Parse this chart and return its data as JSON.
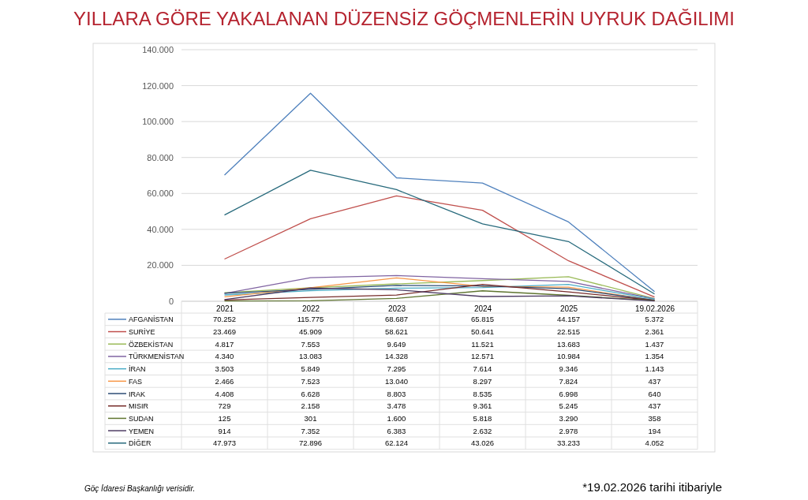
{
  "chart_data": {
    "type": "line",
    "title": "YILLARA GÖRE YAKALANAN DÜZENSİZ GÖÇMENLERİN UYRUK DAĞILIMI",
    "categories": [
      "2021",
      "2022",
      "2023",
      "2024",
      "2025",
      "19.02.2026"
    ],
    "ylim": [
      0,
      140000
    ],
    "yticks": [
      {
        "value": 0,
        "label": "0"
      },
      {
        "value": 20000,
        "label": "20.000"
      },
      {
        "value": 40000,
        "label": "40.000"
      },
      {
        "value": 60000,
        "label": "60.000"
      },
      {
        "value": 80000,
        "label": "80.000"
      },
      {
        "value": 100000,
        "label": "100.000"
      },
      {
        "value": 120000,
        "label": "120.000"
      },
      {
        "value": 140000,
        "label": "140.000"
      }
    ],
    "grid": "y",
    "legend": "bottom",
    "marker": "none",
    "series": [
      {
        "name": "AFGANİSTAN",
        "color": "#4f81bd",
        "values": [
          70252,
          115775,
          68687,
          65815,
          44157,
          5372
        ],
        "value_labels": [
          "70.252",
          "115.775",
          "68.687",
          "65.815",
          "44.157",
          "5.372"
        ]
      },
      {
        "name": "SURİYE",
        "color": "#c0504d",
        "values": [
          23469,
          45909,
          58621,
          50641,
          22515,
          2361
        ],
        "value_labels": [
          "23.469",
          "45.909",
          "58.621",
          "50.641",
          "22.515",
          "2.361"
        ]
      },
      {
        "name": "ÖZBEKİSTAN",
        "color": "#9bbb59",
        "values": [
          4817,
          7553,
          9649,
          11521,
          13683,
          1437
        ],
        "value_labels": [
          "4.817",
          "7.553",
          "9.649",
          "11.521",
          "13.683",
          "1.437"
        ]
      },
      {
        "name": "TÜRKMENİSTAN",
        "color": "#8064a2",
        "values": [
          4340,
          13083,
          14328,
          12571,
          10984,
          1354
        ],
        "value_labels": [
          "4.340",
          "13.083",
          "14.328",
          "12.571",
          "10.984",
          "1.354"
        ]
      },
      {
        "name": "İRAN",
        "color": "#4bacc6",
        "values": [
          3503,
          5849,
          7295,
          7614,
          9346,
          1143
        ],
        "value_labels": [
          "3.503",
          "5.849",
          "7.295",
          "7.614",
          "9.346",
          "1.143"
        ]
      },
      {
        "name": "FAS",
        "color": "#f79646",
        "values": [
          2466,
          7523,
          13040,
          8297,
          7824,
          437
        ],
        "value_labels": [
          "2.466",
          "7.523",
          "13.040",
          "8.297",
          "7.824",
          "437"
        ]
      },
      {
        "name": "IRAK",
        "color": "#2c4d75",
        "values": [
          4408,
          6628,
          8803,
          8535,
          6998,
          640
        ],
        "value_labels": [
          "4.408",
          "6.628",
          "8.803",
          "8.535",
          "6.998",
          "640"
        ]
      },
      {
        "name": "MISIR",
        "color": "#772c2a",
        "values": [
          729,
          2158,
          3478,
          9361,
          5245,
          437
        ],
        "value_labels": [
          "729",
          "2.158",
          "3.478",
          "9.361",
          "5.245",
          "437"
        ]
      },
      {
        "name": "SUDAN",
        "color": "#5f7530",
        "values": [
          125,
          301,
          1600,
          5818,
          3290,
          358
        ],
        "value_labels": [
          "125",
          "301",
          "1.600",
          "5.818",
          "3.290",
          "358"
        ]
      },
      {
        "name": "YEMEN",
        "color": "#4d3b62",
        "values": [
          914,
          7352,
          6383,
          2632,
          2978,
          194
        ],
        "value_labels": [
          "914",
          "7.352",
          "6.383",
          "2.632",
          "2.978",
          "194"
        ]
      },
      {
        "name": "DİĞER",
        "color": "#276a7c",
        "values": [
          47973,
          72896,
          62124,
          43026,
          33233,
          4052
        ],
        "value_labels": [
          "47.973",
          "72.896",
          "62.124",
          "43.026",
          "33.233",
          "4.052"
        ]
      }
    ],
    "annotations": [
      "Göç İdaresi Başkanlığı verisidir.",
      "*19.02.2026 tarihi itibariyle"
    ]
  }
}
